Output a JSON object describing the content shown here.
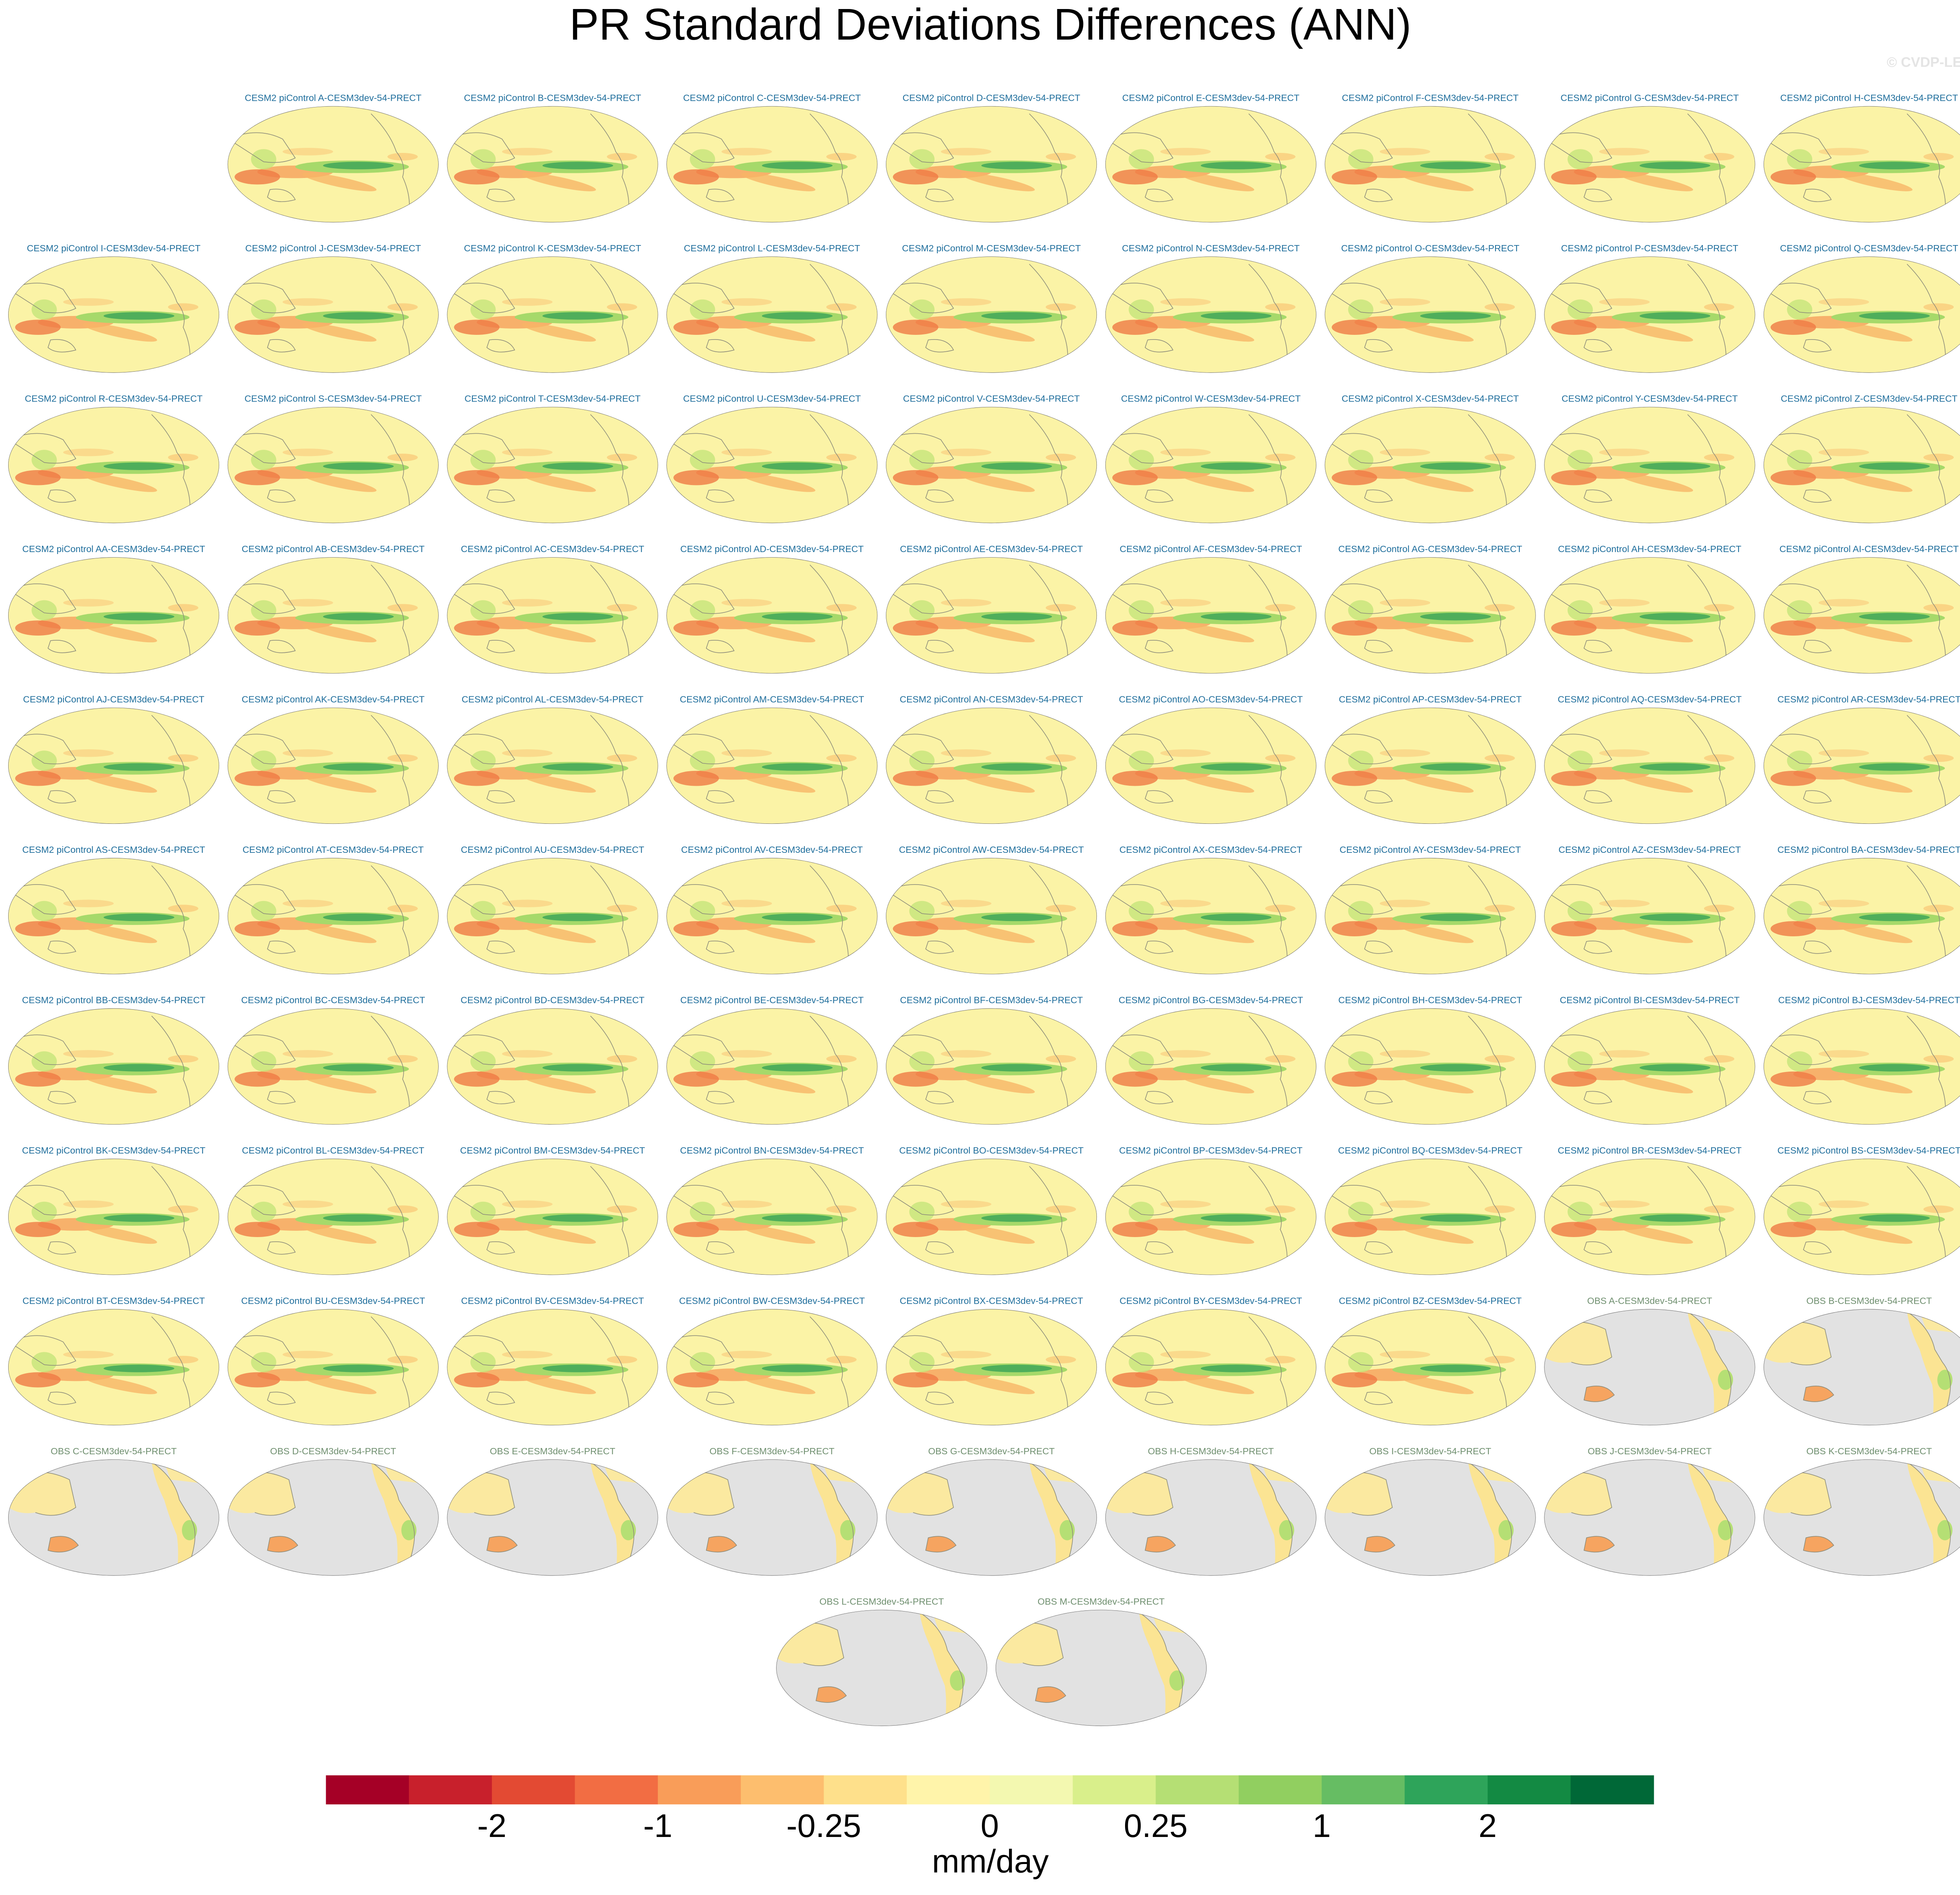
{
  "title": "PR Standard Deviations Differences (ANN)",
  "watermark": "© CVDP-LE",
  "model_panels": [
    "CESM2 piControl A-CESM3dev-54-PRECT",
    "CESM2 piControl B-CESM3dev-54-PRECT",
    "CESM2 piControl C-CESM3dev-54-PRECT",
    "CESM2 piControl D-CESM3dev-54-PRECT",
    "CESM2 piControl E-CESM3dev-54-PRECT",
    "CESM2 piControl F-CESM3dev-54-PRECT",
    "CESM2 piControl G-CESM3dev-54-PRECT",
    "CESM2 piControl H-CESM3dev-54-PRECT",
    "CESM2 piControl I-CESM3dev-54-PRECT",
    "CESM2 piControl J-CESM3dev-54-PRECT",
    "CESM2 piControl K-CESM3dev-54-PRECT",
    "CESM2 piControl L-CESM3dev-54-PRECT",
    "CESM2 piControl M-CESM3dev-54-PRECT",
    "CESM2 piControl N-CESM3dev-54-PRECT",
    "CESM2 piControl O-CESM3dev-54-PRECT",
    "CESM2 piControl P-CESM3dev-54-PRECT",
    "CESM2 piControl Q-CESM3dev-54-PRECT",
    "CESM2 piControl R-CESM3dev-54-PRECT",
    "CESM2 piControl S-CESM3dev-54-PRECT",
    "CESM2 piControl T-CESM3dev-54-PRECT",
    "CESM2 piControl U-CESM3dev-54-PRECT",
    "CESM2 piControl V-CESM3dev-54-PRECT",
    "CESM2 piControl W-CESM3dev-54-PRECT",
    "CESM2 piControl X-CESM3dev-54-PRECT",
    "CESM2 piControl Y-CESM3dev-54-PRECT",
    "CESM2 piControl Z-CESM3dev-54-PRECT",
    "CESM2 piControl AA-CESM3dev-54-PRECT",
    "CESM2 piControl AB-CESM3dev-54-PRECT",
    "CESM2 piControl AC-CESM3dev-54-PRECT",
    "CESM2 piControl AD-CESM3dev-54-PRECT",
    "CESM2 piControl AE-CESM3dev-54-PRECT",
    "CESM2 piControl AF-CESM3dev-54-PRECT",
    "CESM2 piControl AG-CESM3dev-54-PRECT",
    "CESM2 piControl AH-CESM3dev-54-PRECT",
    "CESM2 piControl AI-CESM3dev-54-PRECT",
    "CESM2 piControl AJ-CESM3dev-54-PRECT",
    "CESM2 piControl AK-CESM3dev-54-PRECT",
    "CESM2 piControl AL-CESM3dev-54-PRECT",
    "CESM2 piControl AM-CESM3dev-54-PRECT",
    "CESM2 piControl AN-CESM3dev-54-PRECT",
    "CESM2 piControl AO-CESM3dev-54-PRECT",
    "CESM2 piControl AP-CESM3dev-54-PRECT",
    "CESM2 piControl AQ-CESM3dev-54-PRECT",
    "CESM2 piControl AR-CESM3dev-54-PRECT",
    "CESM2 piControl AS-CESM3dev-54-PRECT",
    "CESM2 piControl AT-CESM3dev-54-PRECT",
    "CESM2 piControl AU-CESM3dev-54-PRECT",
    "CESM2 piControl AV-CESM3dev-54-PRECT",
    "CESM2 piControl AW-CESM3dev-54-PRECT",
    "CESM2 piControl AX-CESM3dev-54-PRECT",
    "CESM2 piControl AY-CESM3dev-54-PRECT",
    "CESM2 piControl AZ-CESM3dev-54-PRECT",
    "CESM2 piControl BA-CESM3dev-54-PRECT",
    "CESM2 piControl BB-CESM3dev-54-PRECT",
    "CESM2 piControl BC-CESM3dev-54-PRECT",
    "CESM2 piControl BD-CESM3dev-54-PRECT",
    "CESM2 piControl BE-CESM3dev-54-PRECT",
    "CESM2 piControl BF-CESM3dev-54-PRECT",
    "CESM2 piControl BG-CESM3dev-54-PRECT",
    "CESM2 piControl BH-CESM3dev-54-PRECT",
    "CESM2 piControl BI-CESM3dev-54-PRECT",
    "CESM2 piControl BJ-CESM3dev-54-PRECT",
    "CESM2 piControl BK-CESM3dev-54-PRECT",
    "CESM2 piControl BL-CESM3dev-54-PRECT",
    "CESM2 piControl BM-CESM3dev-54-PRECT",
    "CESM2 piControl BN-CESM3dev-54-PRECT",
    "CESM2 piControl BO-CESM3dev-54-PRECT",
    "CESM2 piControl BP-CESM3dev-54-PRECT",
    "CESM2 piControl BQ-CESM3dev-54-PRECT",
    "CESM2 piControl BR-CESM3dev-54-PRECT",
    "CESM2 piControl BS-CESM3dev-54-PRECT",
    "CESM2 piControl BT-CESM3dev-54-PRECT",
    "CESM2 piControl BU-CESM3dev-54-PRECT",
    "CESM2 piControl BV-CESM3dev-54-PRECT",
    "CESM2 piControl BW-CESM3dev-54-PRECT",
    "CESM2 piControl BX-CESM3dev-54-PRECT",
    "CESM2 piControl BY-CESM3dev-54-PRECT",
    "CESM2 piControl BZ-CESM3dev-54-PRECT"
  ],
  "obs_panels": [
    "OBS A-CESM3dev-54-PRECT",
    "OBS B-CESM3dev-54-PRECT",
    "OBS C-CESM3dev-54-PRECT",
    "OBS D-CESM3dev-54-PRECT",
    "OBS E-CESM3dev-54-PRECT",
    "OBS F-CESM3dev-54-PRECT",
    "OBS G-CESM3dev-54-PRECT",
    "OBS H-CESM3dev-54-PRECT",
    "OBS I-CESM3dev-54-PRECT",
    "OBS J-CESM3dev-54-PRECT",
    "OBS K-CESM3dev-54-PRECT",
    "OBS L-CESM3dev-54-PRECT",
    "OBS M-CESM3dev-54-PRECT"
  ],
  "colorbar": {
    "colors": [
      "#a50026",
      "#c8202c",
      "#e34a33",
      "#f26d43",
      "#f99d59",
      "#fdbe6e",
      "#fee08b",
      "#fff4aa",
      "#f3f8b0",
      "#d9ef8b",
      "#b5df74",
      "#91cf60",
      "#66bd63",
      "#2ea45a",
      "#138a43",
      "#006837"
    ],
    "ticks": [
      -2,
      -1,
      -0.25,
      0,
      0.25,
      1,
      2
    ],
    "units": "mm/day"
  }
}
